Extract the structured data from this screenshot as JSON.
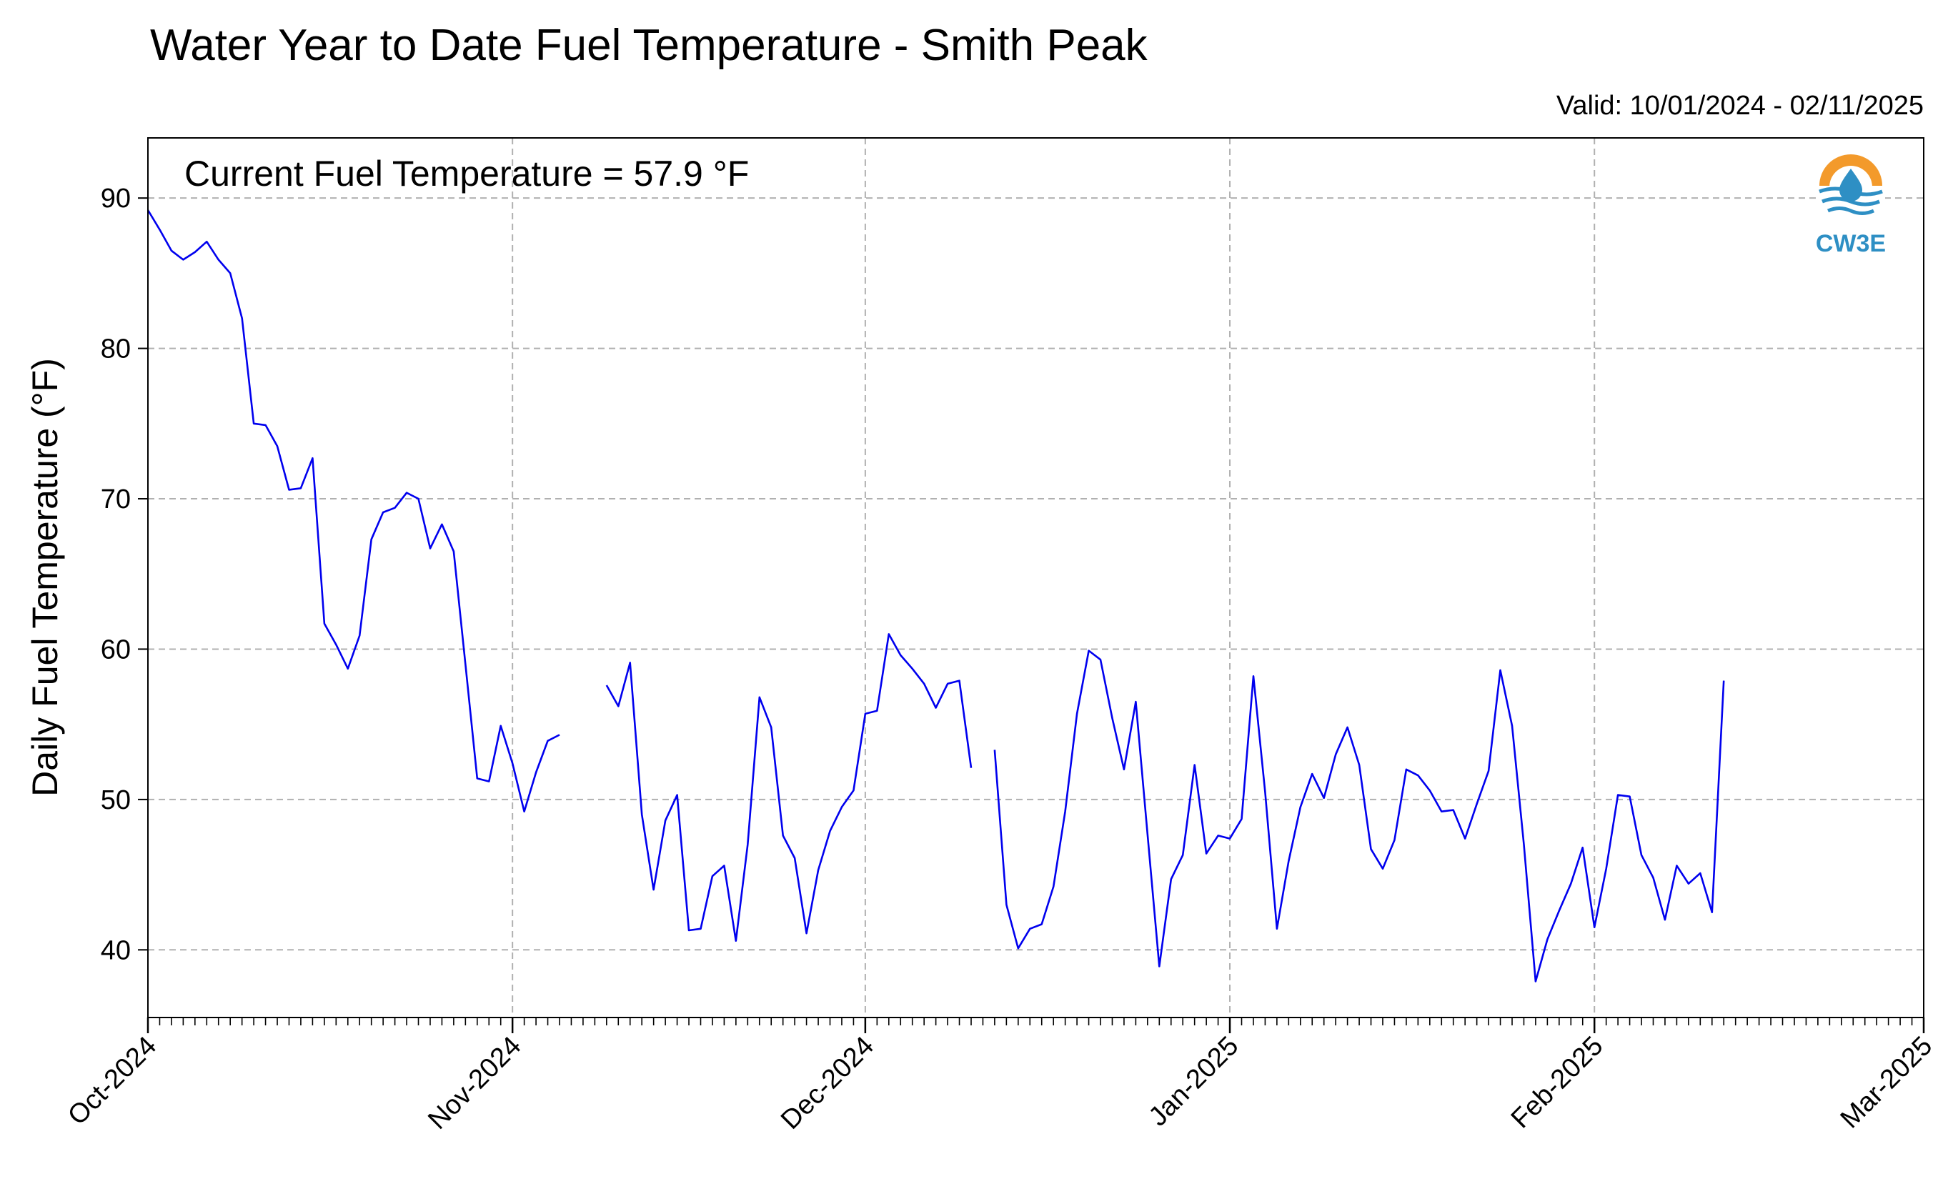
{
  "title": "Water Year to Date Fuel Temperature - Smith Peak",
  "valid_text": "Valid: 10/01/2024 - 02/11/2025",
  "annotation": "Current Fuel Temperature = 57.9 °F",
  "logo_text": "CW3E",
  "colors": {
    "line": "#0000ee",
    "grid": "#b0b0b0",
    "logo_orange": "#f39a2b",
    "logo_blue": "#2e8fc4"
  },
  "chart_data": {
    "type": "line",
    "title": "Water Year to Date Fuel Temperature - Smith Peak",
    "xlabel": "",
    "ylabel": "Daily Fuel Temperature (°F)",
    "ylim": [
      35.5,
      94
    ],
    "xlim": [
      "2024-10-01",
      "2025-03-01"
    ],
    "yticks": [
      40,
      50,
      60,
      70,
      80,
      90
    ],
    "xticks": [
      {
        "date": "2024-10-01",
        "label": "Oct-2024"
      },
      {
        "date": "2024-11-01",
        "label": "Nov-2024"
      },
      {
        "date": "2024-12-01",
        "label": "Dec-2024"
      },
      {
        "date": "2025-01-01",
        "label": "Jan-2025"
      },
      {
        "date": "2025-02-01",
        "label": "Feb-2025"
      },
      {
        "date": "2025-03-01",
        "label": "Mar-2025"
      }
    ],
    "grid": true,
    "series": [
      {
        "start_date": "2024-10-01",
        "values": [
          89.2,
          87.9,
          86.5,
          85.9,
          86.4,
          87.1,
          85.9,
          85.0,
          82.0,
          75.0,
          74.9,
          73.5,
          70.6,
          70.7,
          72.7,
          61.7,
          60.3,
          58.7,
          60.9,
          67.3,
          69.1,
          69.4,
          70.4,
          70.0,
          66.7,
          68.3,
          66.5,
          59.0,
          51.4,
          51.2,
          54.9,
          52.4,
          49.2,
          51.8,
          53.9,
          54.3,
          null,
          null,
          null,
          57.6,
          56.2,
          59.1,
          49.0,
          44.0,
          48.6,
          50.3,
          41.3,
          41.4,
          44.9,
          45.6,
          40.6,
          47.0,
          56.8,
          54.8,
          47.6,
          46.1,
          41.1,
          45.3,
          47.9,
          49.5,
          50.6,
          55.7,
          55.9,
          61.0,
          59.6,
          58.7,
          57.7,
          56.1,
          57.7,
          57.9,
          52.1,
          null,
          53.3,
          43.0,
          40.1,
          41.4,
          41.7,
          44.2,
          49.2,
          55.7,
          59.9,
          59.3,
          55.4,
          52.0,
          56.5,
          47.7,
          38.9,
          44.7,
          46.3,
          52.3,
          46.4,
          47.6,
          47.4,
          48.7,
          58.2,
          50.5,
          41.4,
          45.9,
          49.5,
          51.7,
          50.1,
          53.0,
          54.8,
          52.3,
          46.7,
          45.4,
          47.3,
          52.0,
          51.6,
          50.6,
          49.2,
          49.3,
          47.4,
          49.7,
          51.9,
          58.6,
          54.9,
          47.0,
          37.9,
          40.7,
          42.6,
          44.4,
          46.8,
          41.5,
          45.4,
          50.3,
          50.2,
          46.3,
          44.8,
          42.0,
          45.6,
          44.4,
          45.1,
          42.5,
          57.9
        ]
      }
    ]
  }
}
